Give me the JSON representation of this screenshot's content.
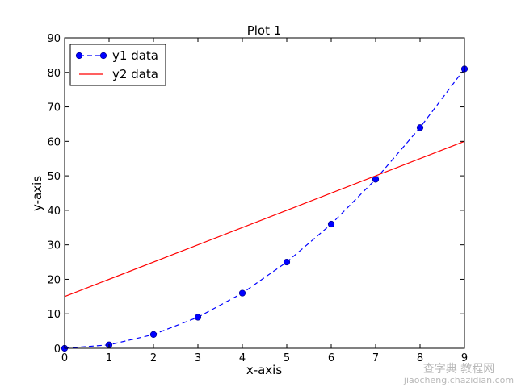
{
  "chart_data": {
    "type": "line",
    "title": "Plot 1",
    "xlabel": "x-axis",
    "ylabel": "y-axis",
    "xlim": [
      0,
      9
    ],
    "ylim": [
      0,
      90
    ],
    "xticks": [
      "0",
      "1",
      "2",
      "3",
      "4",
      "5",
      "6",
      "7",
      "8",
      "9"
    ],
    "yticks": [
      "0",
      "10",
      "20",
      "30",
      "40",
      "50",
      "60",
      "70",
      "80",
      "90"
    ],
    "grid": false,
    "legend_position": "top-left",
    "series": [
      {
        "name": "y1 data",
        "style": "dashed line with circle markers",
        "color": "#0000ff",
        "x": [
          0,
          1,
          2,
          3,
          4,
          5,
          6,
          7,
          8,
          9
        ],
        "y": [
          0,
          1,
          4,
          9,
          16,
          25,
          36,
          49,
          64,
          81
        ]
      },
      {
        "name": "y2 data",
        "style": "solid line",
        "color": "#ff0000",
        "x": [
          0,
          9
        ],
        "y": [
          15,
          60
        ]
      }
    ]
  },
  "watermark": {
    "line1": "查字典 教程网",
    "line2": "jiaocheng.chazidian.com"
  }
}
